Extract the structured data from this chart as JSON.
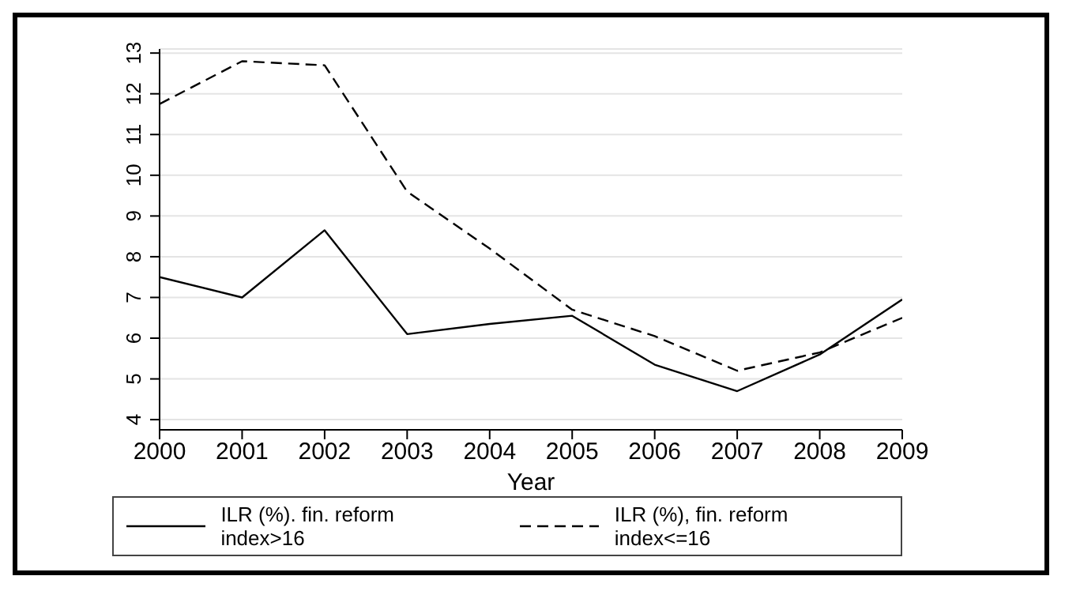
{
  "chart_data": {
    "type": "line",
    "xlabel": "Year",
    "x": [
      2000,
      2001,
      2002,
      2003,
      2004,
      2005,
      2006,
      2007,
      2008,
      2009
    ],
    "series": [
      {
        "name": "ILR (%). fin. reform index>16",
        "color": "#000000",
        "line_style": "solid",
        "values": [
          7.5,
          7.0,
          8.65,
          6.1,
          6.35,
          6.55,
          5.35,
          4.7,
          5.6,
          6.95
        ]
      },
      {
        "name": "ILR (%), fin. reform index<=16",
        "color": "#000000",
        "line_style": "dashed",
        "values": [
          11.75,
          12.8,
          12.7,
          9.6,
          8.2,
          6.7,
          6.05,
          5.2,
          5.65,
          6.5
        ]
      }
    ],
    "xlim": [
      2000,
      2009
    ],
    "xticks": [
      2000,
      2001,
      2002,
      2003,
      2004,
      2005,
      2006,
      2007,
      2008,
      2009
    ],
    "ylim": [
      3.75,
      13.1
    ],
    "yticks": [
      4,
      5,
      6,
      7,
      8,
      9,
      10,
      11,
      12,
      13
    ],
    "grid": "y",
    "legend": "bottom",
    "marker": "none"
  }
}
